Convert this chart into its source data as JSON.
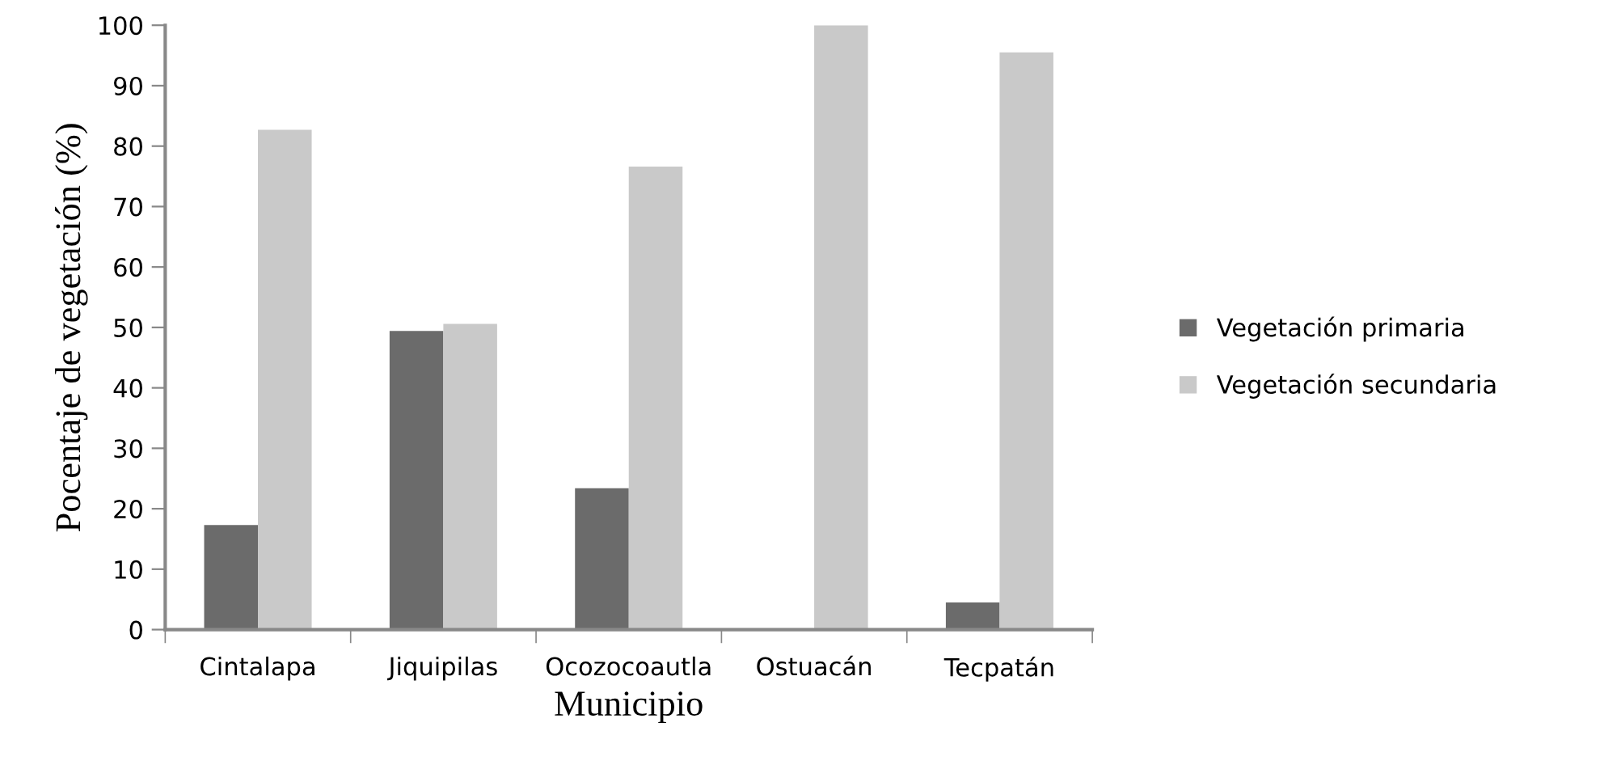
{
  "chart_data": {
    "type": "bar",
    "xlabel": "Municipio",
    "ylabel": "Pocentaje de vegetación (%)",
    "categories": [
      "Cintalapa",
      "Jiquipilas",
      "Ocozocoautla",
      "Ostuacán",
      "Tecpatán"
    ],
    "series": [
      {
        "name": "Vegetación primaria",
        "color": "#6b6b6b",
        "values": [
          17.3,
          49.4,
          23.4,
          0,
          4.5
        ]
      },
      {
        "name": "Vegetación secundaria",
        "color": "#c9c9c9",
        "values": [
          82.7,
          50.6,
          76.6,
          100,
          95.5
        ]
      }
    ],
    "ylim": [
      0,
      100
    ],
    "yticks": [
      0,
      10,
      20,
      30,
      40,
      50,
      60,
      70,
      80,
      90,
      100
    ],
    "grid": false,
    "legend": "right"
  }
}
